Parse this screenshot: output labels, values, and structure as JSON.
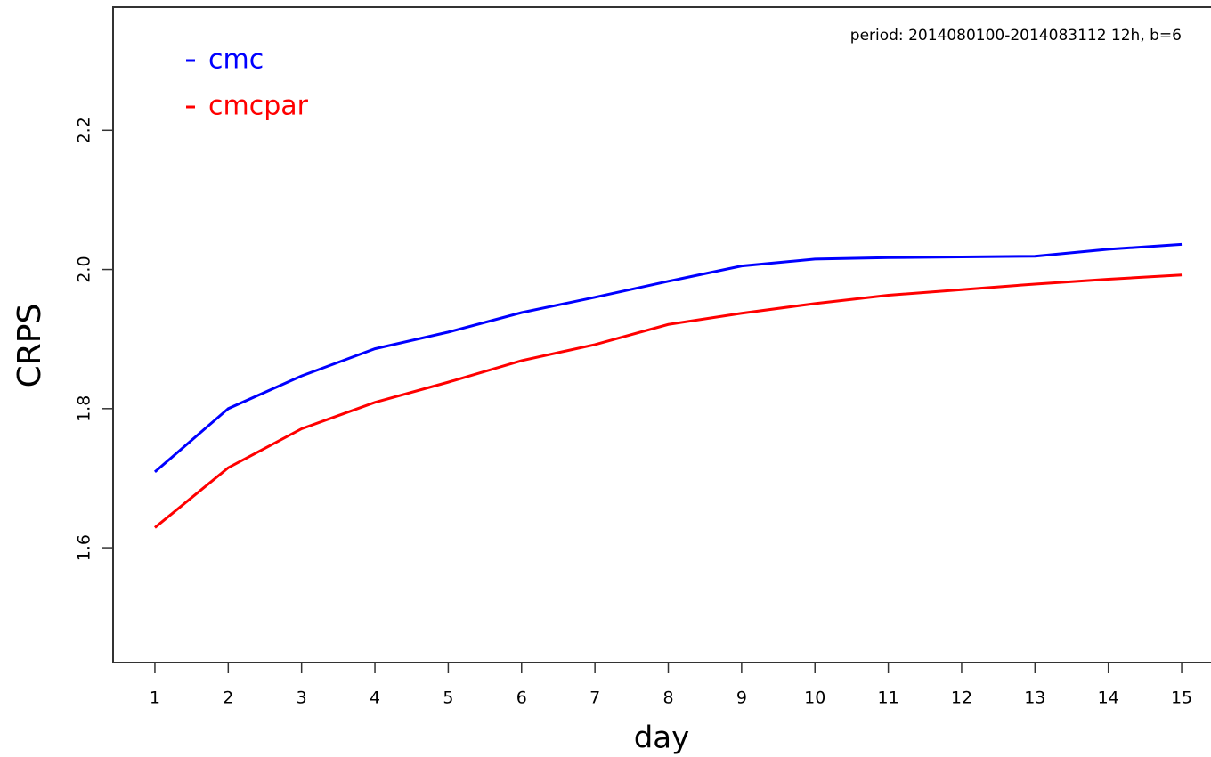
{
  "chart_data": {
    "type": "line",
    "annotation": "period: 2014080100-2014083112 12h, b=6",
    "xlabel": "day",
    "ylabel": "CRPS",
    "x": [
      1,
      2,
      3,
      4,
      5,
      6,
      7,
      8,
      9,
      10,
      11,
      12,
      13,
      14,
      15
    ],
    "series": [
      {
        "name": "cmc",
        "color": "#0000ff",
        "values": [
          1.709,
          1.8,
          1.847,
          1.886,
          1.91,
          1.938,
          1.96,
          1.983,
          2.005,
          2.015,
          2.017,
          2.018,
          2.019,
          2.029,
          2.036
        ]
      },
      {
        "name": "cmcpar",
        "color": "#ff0000",
        "values": [
          1.629,
          1.715,
          1.771,
          1.809,
          1.838,
          1.869,
          1.892,
          1.921,
          1.937,
          1.951,
          1.963,
          1.971,
          1.979,
          1.986,
          1.992
        ]
      }
    ],
    "xlim": [
      0.43,
      15.4
    ],
    "xticks": [
      1,
      2,
      3,
      4,
      5,
      6,
      7,
      8,
      9,
      10,
      11,
      12,
      13,
      14,
      15
    ],
    "ylim": [
      1.435,
      2.377
    ],
    "yticks": [
      1.6,
      1.8,
      {
        "value": 2.0,
        "label": "2.0"
      },
      2.2
    ]
  }
}
